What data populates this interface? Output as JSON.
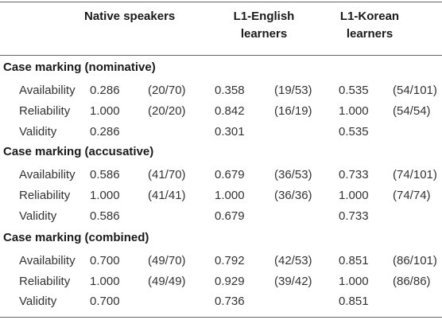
{
  "header": {
    "col1": "Native speakers",
    "col2_line1": "L1-English",
    "col2_line2": "learners",
    "col3_line1": "L1-Korean",
    "col3_line2": "learners"
  },
  "sections": [
    {
      "title": "Case marking (nominative)",
      "rows": [
        {
          "label": "Availability",
          "v1": "0.286",
          "p1": "(20/70)",
          "v2": "0.358",
          "p2": "(19/53)",
          "v3": "0.535",
          "p3": "(54/101)"
        },
        {
          "label": "Reliability",
          "v1": "1.000",
          "p1": "(20/20)",
          "v2": "0.842",
          "p2": "(16/19)",
          "v3": "1.000",
          "p3": "(54/54)"
        },
        {
          "label": "Validity",
          "v1": "0.286",
          "p1": "",
          "v2": "0.301",
          "p2": "",
          "v3": "0.535",
          "p3": ""
        }
      ]
    },
    {
      "title": "Case marking (accusative)",
      "rows": [
        {
          "label": "Availability",
          "v1": "0.586",
          "p1": "(41/70)",
          "v2": "0.679",
          "p2": "(36/53)",
          "v3": "0.733",
          "p3": "(74/101)"
        },
        {
          "label": "Reliability",
          "v1": "1.000",
          "p1": "(41/41)",
          "v2": "1.000",
          "p2": "(36/36)",
          "v3": "1.000",
          "p3": "(74/74)"
        },
        {
          "label": "Validity",
          "v1": "0.586",
          "p1": "",
          "v2": "0.679",
          "p2": "",
          "v3": "0.733",
          "p3": ""
        }
      ]
    },
    {
      "title": "Case marking (combined)",
      "rows": [
        {
          "label": "Availability",
          "v1": "0.700",
          "p1": "(49/70)",
          "v2": "0.792",
          "p2": "(42/53)",
          "v3": "0.851",
          "p3": "(86/101)"
        },
        {
          "label": "Reliability",
          "v1": "1.000",
          "p1": "(49/49)",
          "v2": "0.929",
          "p2": "(39/42)",
          "v3": "1.000",
          "p3": "(86/86)"
        },
        {
          "label": "Validity",
          "v1": "0.700",
          "p1": "",
          "v2": "0.736",
          "p2": "",
          "v3": "0.851",
          "p3": ""
        }
      ]
    }
  ]
}
